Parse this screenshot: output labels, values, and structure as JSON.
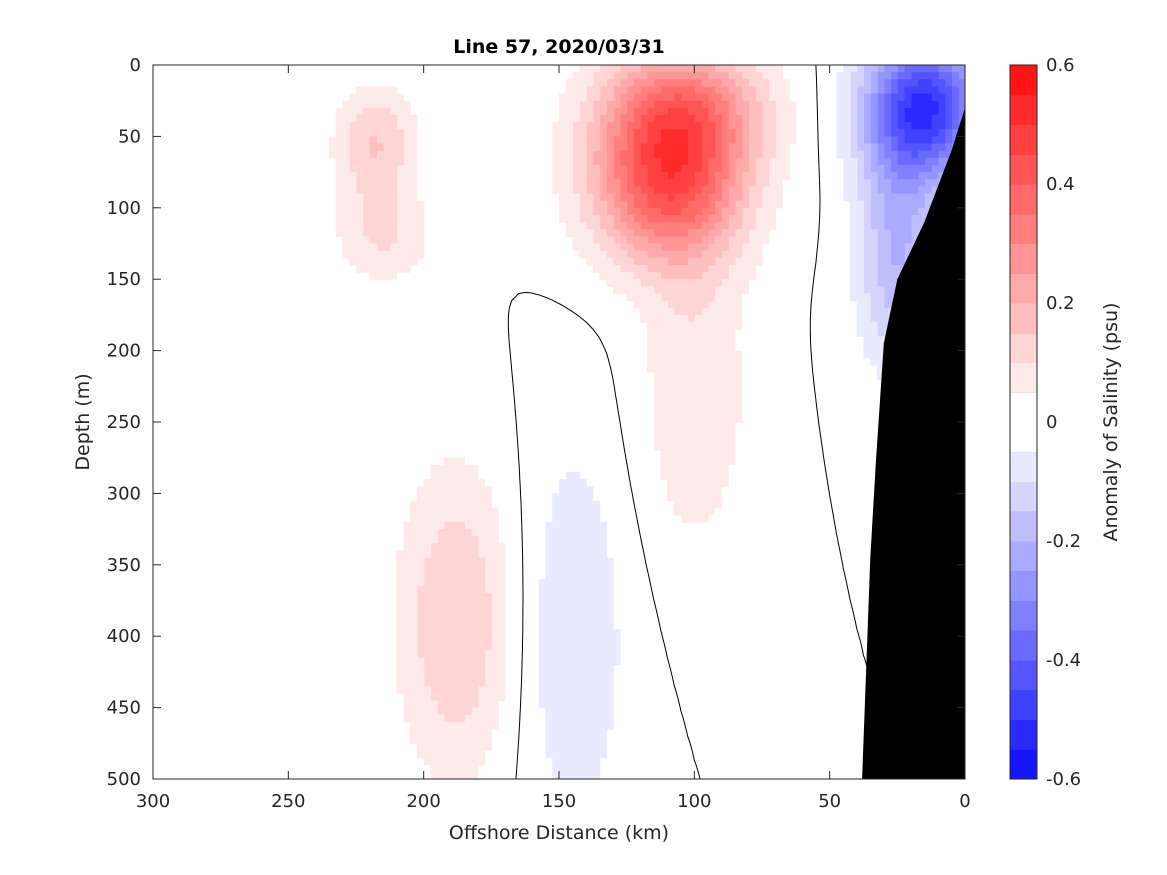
{
  "chart_data": {
    "type": "heatmap",
    "title": "Line 57, 2020/03/31",
    "xlabel": "Offshore Distance (km)",
    "ylabel": "Depth (m)",
    "colorbar_label": "Anomaly of Salinity (psu)",
    "xlim": [
      300,
      0
    ],
    "ylim": [
      0,
      500
    ],
    "x_reversed": true,
    "y_reversed": true,
    "x_ticks": [
      300,
      250,
      200,
      150,
      100,
      50,
      0
    ],
    "y_ticks": [
      0,
      50,
      100,
      150,
      200,
      250,
      300,
      350,
      400,
      450,
      500
    ],
    "clim": [
      -0.6,
      0.6
    ],
    "colorbar_ticks": [
      -0.6,
      -0.4,
      -0.2,
      0,
      0.2,
      0.4,
      0.6
    ],
    "colorbar_tick_labels": [
      "-0.6",
      "-0.4",
      "-0.2",
      "0",
      "0.2",
      "0.4",
      "0.6"
    ],
    "contour_level_step": 0.05,
    "data_x_range": [
      0,
      235
    ],
    "grid": false,
    "colormap": {
      "negative": "#0000ff",
      "zero": "#ffffff",
      "positive": "#ff0000"
    },
    "features": [
      {
        "name": "warm core",
        "center": [
          110,
          85
        ],
        "peak": 0.4,
        "radius": [
          28,
          55
        ]
      },
      {
        "name": "surface warm band",
        "center": [
          105,
          30
        ],
        "peak": 0.3,
        "radius": [
          30,
          45
        ]
      },
      {
        "name": "warm plume",
        "center": [
          100,
          230
        ],
        "peak": 0.1,
        "radius": [
          20,
          110
        ]
      },
      {
        "name": "fresh core",
        "center": [
          15,
          30
        ],
        "peak": -0.5,
        "radius": [
          22,
          50
        ]
      },
      {
        "name": "fresh slope band",
        "center": [
          25,
          130
        ],
        "peak": -0.2,
        "radius": [
          15,
          80
        ]
      },
      {
        "name": "deep salty lens",
        "center": [
          188,
          390
        ],
        "peak": 0.15,
        "radius": [
          22,
          110
        ]
      },
      {
        "name": "deep fresh band",
        "center": [
          145,
          400
        ],
        "peak": -0.1,
        "radius": [
          20,
          140
        ]
      },
      {
        "name": "western salty patch",
        "center": [
          218,
          55
        ],
        "peak": 0.15,
        "radius": [
          15,
          40
        ]
      },
      {
        "name": "western salty patch 2",
        "center": [
          215,
          120
        ],
        "peak": 0.1,
        "radius": [
          18,
          35
        ]
      }
    ],
    "bathymetry": [
      [
        0,
        30
      ],
      [
        5,
        60
      ],
      [
        10,
        85
      ],
      [
        15,
        110
      ],
      [
        20,
        130
      ],
      [
        25,
        150
      ],
      [
        30,
        195
      ],
      [
        33,
        280
      ],
      [
        35,
        345
      ],
      [
        38,
        500
      ]
    ]
  }
}
